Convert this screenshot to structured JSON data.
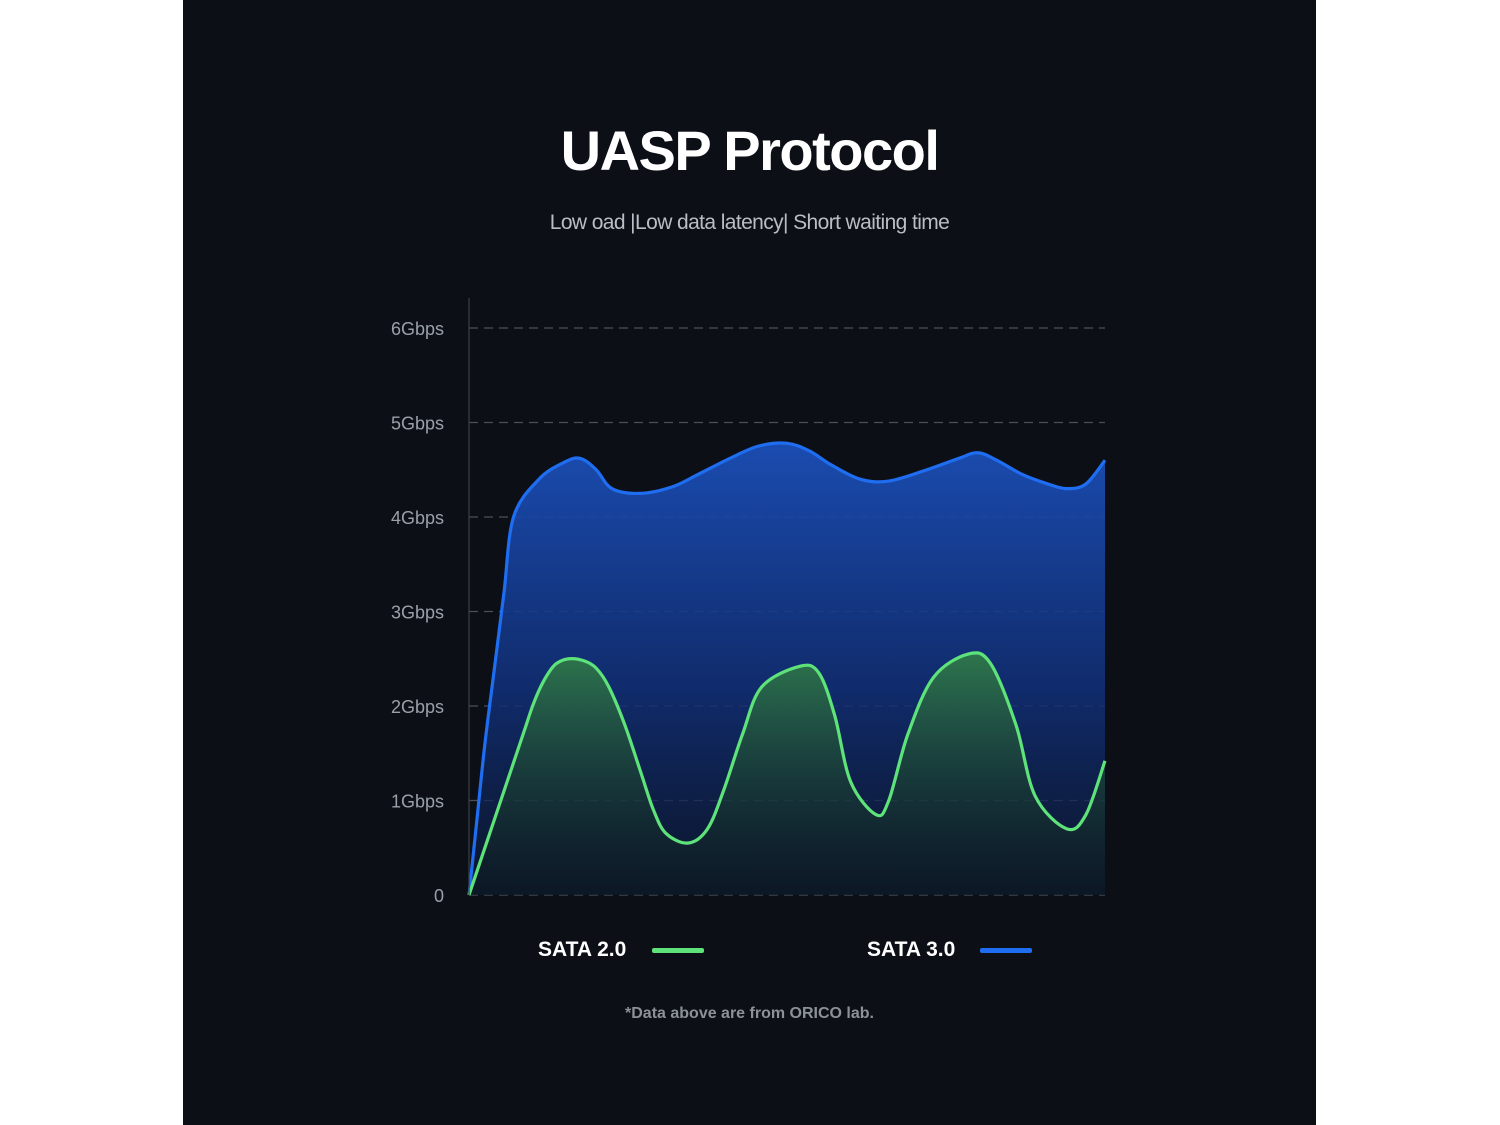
{
  "title": "UASP Protocol",
  "subtitle": "Low oad |Low data latency| Short waiting time",
  "footnote": "*Data above are from ORICO lab.",
  "colors": {
    "background": "#0c1016",
    "sata2": "#5ee27a",
    "sata3": "#1f6ef2",
    "grid": "#4a4f57",
    "tick_text": "#9aa0a8"
  },
  "chart_data": {
    "type": "area",
    "title": "UASP Protocol",
    "subtitle": "Low oad |Low data latency| Short waiting time",
    "xlabel": "",
    "ylabel": "",
    "y_ticks": [
      "0",
      "1Gbps",
      "2Gbps",
      "3Gbps",
      "4Gbps",
      "5Gbps",
      "6Gbps"
    ],
    "ylim": [
      0,
      6
    ],
    "grid": true,
    "legend_position": "bottom",
    "x": [
      0,
      0.1,
      0.2,
      0.3,
      0.4,
      0.5,
      0.6,
      0.7,
      0.8,
      0.9,
      1
    ],
    "series": [
      {
        "name": "SATA 2.0",
        "color": "#5ee27a",
        "values": [
          0,
          0.25,
          0.5,
          0.75,
          1,
          1.25,
          1.5,
          1.75,
          2,
          2.2,
          2.35,
          2.45,
          2.5,
          2.48,
          2.4,
          2.2,
          1.8,
          1.3,
          0.9,
          0.65,
          0.55,
          0.7,
          1.1,
          1.7,
          2.2,
          2.42,
          2.35,
          1.9,
          1.2,
          0.85,
          1.0,
          1.7,
          2.3,
          2.55,
          2.45,
          1.8,
          1.05,
          0.7,
          0.85,
          1.42
        ],
        "x": [
          0,
          0.0125,
          0.025,
          0.0375,
          0.05,
          0.0625,
          0.075,
          0.0875,
          0.1,
          0.1125,
          0.125,
          0.1375,
          0.157,
          0.18,
          0.2,
          0.22,
          0.245,
          0.27,
          0.29,
          0.31,
          0.345,
          0.375,
          0.4,
          0.43,
          0.46,
          0.52,
          0.55,
          0.575,
          0.6,
          0.64,
          0.66,
          0.69,
          0.73,
          0.785,
          0.82,
          0.86,
          0.89,
          0.94,
          0.97,
          1
        ]
      },
      {
        "name": "SATA 3.0",
        "color": "#1f6ef2",
        "values": [
          0,
          0.8,
          1.6,
          2.4,
          3.2,
          4.0,
          4.4,
          4.58,
          4.62,
          4.5,
          4.3,
          4.25,
          4.32,
          4.45,
          4.62,
          4.75,
          4.78,
          4.7,
          4.55,
          4.4,
          4.38,
          4.5,
          4.62,
          4.68,
          4.6,
          4.45,
          4.35,
          4.3,
          4.35,
          4.6
        ],
        "x": [
          0,
          0.0125,
          0.025,
          0.04,
          0.055,
          0.07,
          0.11,
          0.15,
          0.175,
          0.2,
          0.225,
          0.27,
          0.32,
          0.36,
          0.41,
          0.455,
          0.5,
          0.535,
          0.57,
          0.615,
          0.66,
          0.72,
          0.77,
          0.8,
          0.83,
          0.87,
          0.91,
          0.94,
          0.97,
          1
        ]
      }
    ]
  }
}
